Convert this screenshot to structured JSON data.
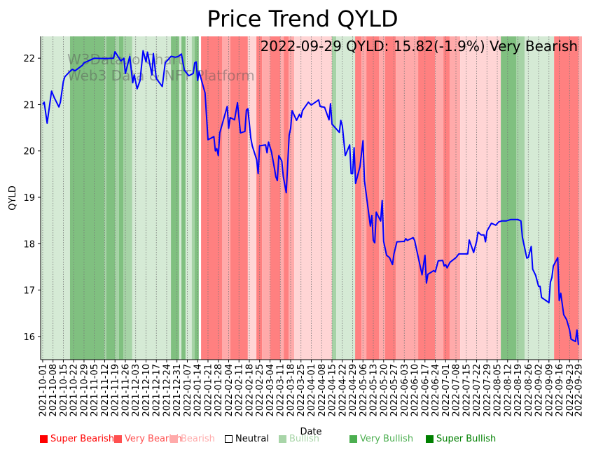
{
  "chart_data": {
    "type": "line",
    "title": "Price Trend QYLD",
    "xlabel": "Date",
    "ylabel": "QYLD",
    "annotation": "2022-09-29 QYLD: 15.82(-1.9%) Very Bearish",
    "watermark": [
      "W3Data.io Chart",
      "Web3 Data & NFT Platform"
    ],
    "x_origin_date": "2021-10-01",
    "x_unit": "days since x_origin_date",
    "xlim": [
      -1.4,
      365.4
    ],
    "ylim": [
      15.5,
      22.47
    ],
    "yticks": [
      16,
      17,
      18,
      19,
      20,
      21,
      22
    ],
    "xtick_days": [
      0,
      7,
      14,
      21,
      28,
      35,
      42,
      49,
      56,
      63,
      70,
      77,
      84,
      91,
      98,
      105,
      112,
      119,
      126,
      133,
      140,
      147,
      154,
      161,
      168,
      175,
      182,
      189,
      196,
      203,
      210,
      217,
      224,
      231,
      238,
      245,
      252,
      259,
      266,
      273,
      280,
      287,
      294,
      301,
      308,
      315,
      322,
      329,
      336,
      343,
      350,
      357,
      363
    ],
    "xtick_labels": [
      "2021-10-01",
      "2021-10-08",
      "2021-10-15",
      "2021-10-22",
      "2021-10-29",
      "2021-11-05",
      "2021-11-12",
      "2021-11-19",
      "2021-11-26",
      "2021-12-03",
      "2021-12-10",
      "2021-12-17",
      "2021-12-24",
      "2021-12-31",
      "2022-01-07",
      "2022-01-14",
      "2022-01-21",
      "2022-01-28",
      "2022-02-04",
      "2022-02-11",
      "2022-02-18",
      "2022-02-25",
      "2022-03-04",
      "2022-03-11",
      "2022-03-18",
      "2022-03-25",
      "2022-04-01",
      "2022-04-08",
      "2022-04-15",
      "2022-04-22",
      "2022-04-29",
      "2022-05-06",
      "2022-05-13",
      "2022-05-20",
      "2022-05-27",
      "2022-06-03",
      "2022-06-10",
      "2022-06-17",
      "2022-06-24",
      "2022-07-01",
      "2022-07-08",
      "2022-07-15",
      "2022-07-22",
      "2022-07-29",
      "2022-08-05",
      "2022-08-12",
      "2022-08-19",
      "2022-08-26",
      "2022-09-02",
      "2022-09-09",
      "2022-09-16",
      "2022-09-23",
      "2022-09-29"
    ],
    "grid": "vertical dotted at x ticks",
    "line_color": "#0000ff",
    "series": [
      {
        "name": "QYLD",
        "points": [
          [
            0,
            21.0
          ],
          [
            1,
            21.05
          ],
          [
            3,
            20.6
          ],
          [
            6,
            21.29
          ],
          [
            8,
            21.14
          ],
          [
            11,
            20.95
          ],
          [
            12,
            21.05
          ],
          [
            14,
            21.5
          ],
          [
            15,
            21.6
          ],
          [
            18,
            21.7
          ],
          [
            20,
            21.76
          ],
          [
            22,
            21.73
          ],
          [
            27,
            21.85
          ],
          [
            28,
            21.9
          ],
          [
            35,
            22.0
          ],
          [
            42,
            21.99
          ],
          [
            48,
            22.0
          ],
          [
            49,
            22.14
          ],
          [
            53,
            21.94
          ],
          [
            55,
            22.0
          ],
          [
            56,
            21.67
          ],
          [
            59,
            22.04
          ],
          [
            61,
            21.47
          ],
          [
            62,
            21.64
          ],
          [
            64,
            21.34
          ],
          [
            66,
            21.52
          ],
          [
            68,
            22.16
          ],
          [
            70,
            21.92
          ],
          [
            71,
            22.13
          ],
          [
            74,
            21.64
          ],
          [
            75,
            22.1
          ],
          [
            77,
            21.56
          ],
          [
            81,
            21.39
          ],
          [
            83,
            21.9
          ],
          [
            87,
            22.04
          ],
          [
            90,
            22.02
          ],
          [
            92,
            22.04
          ],
          [
            94,
            22.09
          ],
          [
            96,
            21.74
          ],
          [
            99,
            21.62
          ],
          [
            102,
            21.67
          ],
          [
            103,
            21.9
          ],
          [
            104,
            21.92
          ],
          [
            105,
            21.52
          ],
          [
            106,
            21.71
          ],
          [
            110,
            21.25
          ],
          [
            112,
            20.24
          ],
          [
            116,
            20.31
          ],
          [
            117,
            20.0
          ],
          [
            118,
            20.05
          ],
          [
            119,
            19.9
          ],
          [
            120,
            20.39
          ],
          [
            125,
            20.96
          ],
          [
            126,
            20.49
          ],
          [
            127,
            20.72
          ],
          [
            130,
            20.67
          ],
          [
            132,
            21.04
          ],
          [
            134,
            20.39
          ],
          [
            137,
            20.42
          ],
          [
            138,
            20.88
          ],
          [
            139,
            20.91
          ],
          [
            141,
            20.28
          ],
          [
            142,
            20.11
          ],
          [
            145,
            19.81
          ],
          [
            146,
            19.51
          ],
          [
            147,
            20.11
          ],
          [
            151,
            20.13
          ],
          [
            152,
            19.96
          ],
          [
            153,
            20.19
          ],
          [
            155,
            19.98
          ],
          [
            157,
            19.63
          ],
          [
            158,
            19.44
          ],
          [
            159,
            19.36
          ],
          [
            160,
            19.9
          ],
          [
            162,
            19.78
          ],
          [
            163,
            19.45
          ],
          [
            165,
            19.1
          ],
          [
            167,
            20.34
          ],
          [
            168,
            20.49
          ],
          [
            169,
            20.87
          ],
          [
            172,
            20.66
          ],
          [
            174,
            20.79
          ],
          [
            175,
            20.72
          ],
          [
            176,
            20.87
          ],
          [
            180,
            21.05
          ],
          [
            182,
            20.99
          ],
          [
            187,
            21.1
          ],
          [
            188,
            20.96
          ],
          [
            191,
            20.94
          ],
          [
            194,
            20.67
          ],
          [
            195,
            21.02
          ],
          [
            196,
            20.58
          ],
          [
            201,
            20.4
          ],
          [
            202,
            20.66
          ],
          [
            203,
            20.54
          ],
          [
            205,
            19.9
          ],
          [
            208,
            20.13
          ],
          [
            209,
            19.51
          ],
          [
            210,
            19.51
          ],
          [
            211,
            20.07
          ],
          [
            212,
            19.3
          ],
          [
            215,
            19.66
          ],
          [
            217,
            20.22
          ],
          [
            218,
            19.36
          ],
          [
            222,
            18.38
          ],
          [
            223,
            18.61
          ],
          [
            224,
            18.07
          ],
          [
            225,
            18.02
          ],
          [
            226,
            18.68
          ],
          [
            229,
            18.49
          ],
          [
            230,
            18.93
          ],
          [
            231,
            18.05
          ],
          [
            233,
            17.75
          ],
          [
            235,
            17.7
          ],
          [
            237,
            17.55
          ],
          [
            238,
            17.78
          ],
          [
            240,
            18.04
          ],
          [
            245,
            18.05
          ],
          [
            246,
            18.11
          ],
          [
            247,
            18.07
          ],
          [
            251,
            18.13
          ],
          [
            252,
            18.07
          ],
          [
            257,
            17.33
          ],
          [
            259,
            17.75
          ],
          [
            260,
            17.15
          ],
          [
            261,
            17.34
          ],
          [
            265,
            17.42
          ],
          [
            266,
            17.39
          ],
          [
            268,
            17.63
          ],
          [
            271,
            17.64
          ],
          [
            272,
            17.52
          ],
          [
            273,
            17.55
          ],
          [
            274,
            17.48
          ],
          [
            276,
            17.6
          ],
          [
            280,
            17.7
          ],
          [
            282,
            17.78
          ],
          [
            288,
            17.78
          ],
          [
            289,
            18.08
          ],
          [
            292,
            17.81
          ],
          [
            294,
            18.05
          ],
          [
            295,
            18.25
          ],
          [
            297,
            18.19
          ],
          [
            299,
            18.19
          ],
          [
            300,
            18.04
          ],
          [
            301,
            18.27
          ],
          [
            304,
            18.44
          ],
          [
            307,
            18.4
          ],
          [
            309,
            18.47
          ],
          [
            311,
            18.49
          ],
          [
            314,
            18.49
          ],
          [
            317,
            18.52
          ],
          [
            322,
            18.52
          ],
          [
            324,
            18.49
          ],
          [
            325,
            18.14
          ],
          [
            328,
            17.69
          ],
          [
            329,
            17.7
          ],
          [
            331,
            17.94
          ],
          [
            332,
            17.45
          ],
          [
            334,
            17.32
          ],
          [
            336,
            17.08
          ],
          [
            337,
            17.08
          ],
          [
            338,
            16.84
          ],
          [
            343,
            16.73
          ],
          [
            344,
            17.17
          ],
          [
            345,
            17.27
          ],
          [
            346,
            17.52
          ],
          [
            349,
            17.7
          ],
          [
            350,
            16.78
          ],
          [
            351,
            16.93
          ],
          [
            353,
            16.47
          ],
          [
            355,
            16.36
          ],
          [
            357,
            16.14
          ],
          [
            358,
            15.94
          ],
          [
            361,
            15.89
          ],
          [
            362,
            16.14
          ],
          [
            363,
            15.82
          ]
        ]
      }
    ],
    "sentiment_bands": [
      [
        -2,
        18.5,
        "Bullish"
      ],
      [
        18.5,
        41.8,
        "Super Bullish"
      ],
      [
        41.8,
        43.2,
        "Very Bullish"
      ],
      [
        43.2,
        48.9,
        "Super Bullish"
      ],
      [
        48.9,
        51.7,
        "Very Bullish"
      ],
      [
        51.7,
        54.6,
        "Super Bullish"
      ],
      [
        54.6,
        60.7,
        "Very Bullish"
      ],
      [
        60.7,
        86.9,
        "Bullish"
      ],
      [
        86.9,
        92.5,
        "Super Bullish"
      ],
      [
        92.5,
        94,
        "Bullish"
      ],
      [
        94,
        96.8,
        "Super Bullish"
      ],
      [
        96.8,
        101,
        "Bullish"
      ],
      [
        101,
        103,
        "Very Bullish"
      ],
      [
        103,
        105.8,
        "Super Bullish"
      ],
      [
        105.8,
        107.3,
        "Neutral"
      ],
      [
        107.3,
        121.5,
        "Super Bearish"
      ],
      [
        121.5,
        127.2,
        "Very Bearish"
      ],
      [
        127.2,
        139,
        "Super Bearish"
      ],
      [
        139,
        144.8,
        "Bearish"
      ],
      [
        144.8,
        148.6,
        "Super Bearish"
      ],
      [
        148.6,
        154.2,
        "Very Bearish"
      ],
      [
        154.2,
        160.9,
        "Super Bearish"
      ],
      [
        160.9,
        163.3,
        "Very Bearish"
      ],
      [
        163.3,
        166.6,
        "Super Bearish"
      ],
      [
        166.6,
        170.4,
        "Very Bearish"
      ],
      [
        170.4,
        196,
        "Bearish"
      ],
      [
        196,
        198.9,
        "Very Bullish"
      ],
      [
        198.9,
        211.7,
        "Bullish"
      ],
      [
        211.7,
        216,
        "Super Bearish"
      ],
      [
        216,
        219.3,
        "Very Bearish"
      ],
      [
        219.3,
        227.8,
        "Super Bearish"
      ],
      [
        227.8,
        232,
        "Very Bearish"
      ],
      [
        232,
        239.2,
        "Super Bearish"
      ],
      [
        239.2,
        254.4,
        "Very Bearish"
      ],
      [
        254.4,
        265.8,
        "Super Bearish"
      ],
      [
        265.8,
        271.5,
        "Very Bearish"
      ],
      [
        271.5,
        275.7,
        "Super Bearish"
      ],
      [
        275.7,
        282.9,
        "Very Bearish"
      ],
      [
        282.9,
        310.4,
        "Bearish"
      ],
      [
        310.4,
        320.8,
        "Super Bullish"
      ],
      [
        320.8,
        326.5,
        "Very Bullish"
      ],
      [
        326.5,
        346.5,
        "Bullish"
      ],
      [
        346.5,
        363,
        "Super Bearish"
      ],
      [
        363,
        366,
        "Very Bearish"
      ]
    ],
    "band_colors": {
      "Super Bearish": "#ff8080",
      "Very Bearish": "#ffaaaa",
      "Bearish": "#ffd5d5",
      "Neutral": "#ffffff",
      "Bullish": "#d5ead5",
      "Very Bullish": "#a6d3a6",
      "Super Bullish": "#80c080"
    },
    "legend": {
      "placement": "bottom",
      "items": [
        {
          "label": "Super Bearish",
          "color": "#ff0000"
        },
        {
          "label": "Very Bearish",
          "color": "#ff5050"
        },
        {
          "label": "Bearish",
          "color": "#ffaaaa"
        },
        {
          "label": "Neutral",
          "color": "#ffffff"
        },
        {
          "label": "Bullish",
          "color": "#a8d5a8"
        },
        {
          "label": "Very Bullish",
          "color": "#4caf50"
        },
        {
          "label": "Super Bullish",
          "color": "#008000"
        }
      ]
    }
  }
}
